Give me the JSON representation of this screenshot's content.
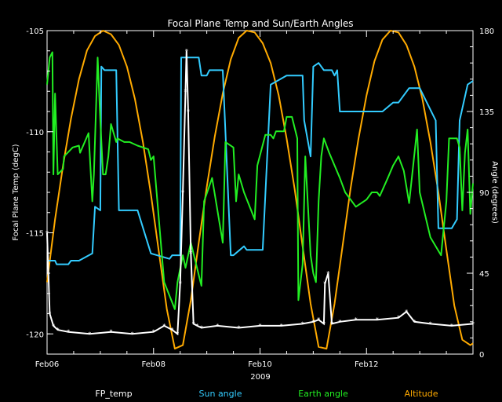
{
  "chart_data": {
    "type": "line",
    "title": "Focal Plane Temp and Sun/Earth Angles",
    "xlabel": "2009",
    "ylabel_left": "Focal Plane Temp (degC)",
    "ylabel_right": "Angle (degrees)",
    "x_ticks": [
      "Feb06",
      "Feb08",
      "Feb10",
      "Feb12"
    ],
    "x_range": [
      "Feb06",
      "Feb14"
    ],
    "ylim_left": [
      -121,
      -105
    ],
    "yticks_left": [
      "-105",
      "-110",
      "-115",
      "-120"
    ],
    "ylim_right": [
      0,
      180
    ],
    "yticks_right": [
      "180",
      "135",
      "90",
      "45",
      "0"
    ],
    "legend": [
      "FP_temp",
      "Sun angle",
      "Earth angle",
      "Altitude"
    ],
    "colors": {
      "FP_temp": "#ffffff",
      "Sun angle": "#33ccff",
      "Earth angle": "#22ee22",
      "Altitude": "#ffaa00",
      "axes": "#ffffff",
      "background": "#000000"
    },
    "series": [
      {
        "name": "FP_temp",
        "axis": "left",
        "style": "markers",
        "x": [
          6.0,
          6.05,
          6.12,
          6.2,
          6.4,
          6.8,
          7.2,
          7.6,
          8.0,
          8.2,
          8.35,
          8.45,
          8.5,
          8.55,
          8.6,
          8.62,
          8.65,
          8.7,
          8.75,
          8.82,
          8.9,
          9.2,
          9.6,
          10.0,
          10.4,
          10.8,
          11.0,
          11.1,
          11.2,
          11.22,
          11.28,
          11.35,
          11.5,
          11.8,
          12.2,
          12.6,
          12.75,
          12.9,
          13.2,
          13.6,
          14.0
        ],
        "y": [
          -115.0,
          -119.0,
          -119.6,
          -119.8,
          -119.9,
          -120.0,
          -119.9,
          -120.0,
          -119.9,
          -119.6,
          -119.8,
          -120.0,
          -117.5,
          -113.0,
          -108.0,
          -106.0,
          -109.0,
          -116.0,
          -119.5,
          -119.6,
          -119.7,
          -119.6,
          -119.7,
          -119.6,
          -119.6,
          -119.5,
          -119.4,
          -119.3,
          -119.5,
          -117.5,
          -117.0,
          -119.5,
          -119.4,
          -119.3,
          -119.3,
          -119.2,
          -118.9,
          -119.4,
          -119.5,
          -119.6,
          -119.5
        ]
      },
      {
        "name": "Sun angle",
        "axis": "right",
        "x": [
          6.0,
          6.15,
          6.18,
          6.4,
          6.45,
          6.6,
          6.85,
          6.9,
          7.0,
          7.02,
          7.08,
          7.3,
          7.35,
          7.7,
          7.95,
          8.3,
          8.35,
          8.5,
          8.52,
          8.85,
          8.9,
          9.0,
          9.05,
          9.3,
          9.45,
          9.5,
          9.7,
          9.75,
          9.9,
          10.05,
          10.2,
          10.5,
          10.8,
          10.83,
          10.95,
          11.0,
          11.1,
          11.2,
          11.35,
          11.4,
          11.45,
          11.5,
          11.8,
          12.0,
          12.3,
          12.5,
          12.6,
          12.8,
          13.0,
          13.3,
          13.35,
          13.6,
          13.7,
          13.75,
          13.9,
          14.0
        ],
        "y": [
          52,
          52,
          50,
          50,
          52,
          52,
          56,
          82,
          80,
          160,
          158,
          158,
          80,
          80,
          56,
          53,
          55,
          55,
          165,
          165,
          155,
          155,
          158,
          158,
          55,
          55,
          60,
          58,
          58,
          58,
          150,
          155,
          155,
          130,
          110,
          160,
          162,
          158,
          158,
          155,
          158,
          135,
          135,
          135,
          135,
          140,
          140,
          148,
          148,
          130,
          70,
          70,
          75,
          130,
          150,
          152
        ]
      },
      {
        "name": "Earth angle",
        "axis": "right",
        "x": [
          6.0,
          6.05,
          6.1,
          6.12,
          6.15,
          6.2,
          6.3,
          6.32,
          6.45,
          6.48,
          6.6,
          6.62,
          6.78,
          6.85,
          6.88,
          6.95,
          7.0,
          7.05,
          7.1,
          7.15,
          7.2,
          7.3,
          7.32,
          7.45,
          7.55,
          7.7,
          7.9,
          7.95,
          8.0,
          8.2,
          8.4,
          8.45,
          8.55,
          8.6,
          8.7,
          8.9,
          8.95,
          9.1,
          9.3,
          9.35,
          9.5,
          9.55,
          9.6,
          9.7,
          9.9,
          9.95,
          10.1,
          10.2,
          10.25,
          10.3,
          10.45,
          10.5,
          10.6,
          10.7,
          10.72,
          10.8,
          10.85,
          10.95,
          11.0,
          11.05,
          11.1,
          11.15,
          11.2,
          11.3,
          11.5,
          11.6,
          11.8,
          12.0,
          12.1,
          12.2,
          12.25,
          12.4,
          12.5,
          12.6,
          12.7,
          12.8,
          12.95,
          13.0,
          13.2,
          13.4,
          13.5,
          13.55,
          13.7,
          13.75,
          13.8,
          13.85,
          13.9,
          13.95,
          14.0
        ],
        "y": [
          150,
          165,
          168,
          100,
          145,
          100,
          103,
          110,
          114,
          115,
          116,
          112,
          123,
          85,
          100,
          165,
          130,
          100,
          100,
          110,
          128,
          118,
          120,
          118,
          118,
          116,
          114,
          108,
          110,
          40,
          25,
          40,
          55,
          48,
          62,
          38,
          85,
          98,
          62,
          118,
          115,
          85,
          100,
          90,
          75,
          105,
          122,
          122,
          120,
          124,
          124,
          132,
          132,
          120,
          30,
          50,
          110,
          55,
          45,
          40,
          85,
          110,
          120,
          112,
          98,
          90,
          82,
          86,
          90,
          90,
          88,
          98,
          105,
          110,
          102,
          84,
          125,
          90,
          65,
          55,
          85,
          120,
          120,
          115,
          80,
          112,
          125,
          78,
          95
        ]
      },
      {
        "name": "Altitude",
        "axis": "right",
        "x": [
          6.0,
          6.15,
          6.3,
          6.45,
          6.6,
          6.75,
          6.9,
          7.05,
          7.2,
          7.35,
          7.5,
          7.65,
          7.8,
          7.95,
          8.1,
          8.25,
          8.4,
          8.55,
          8.7,
          8.85,
          9.0,
          9.15,
          9.3,
          9.45,
          9.6,
          9.75,
          9.9,
          10.05,
          10.2,
          10.35,
          10.5,
          10.65,
          10.8,
          10.95,
          11.1,
          11.25,
          11.4,
          11.55,
          11.7,
          11.85,
          12.0,
          12.15,
          12.3,
          12.45,
          12.6,
          12.75,
          12.9,
          13.05,
          13.2,
          13.35,
          13.5,
          13.65,
          13.8,
          13.95,
          14.0
        ],
        "y": [
          40,
          75,
          105,
          131,
          153,
          169,
          177,
          180,
          178,
          172,
          160,
          142,
          118,
          89,
          57,
          25,
          3,
          5,
          30,
          62,
          93,
          121,
          145,
          164,
          176,
          180,
          179,
          173,
          162,
          144,
          120,
          92,
          60,
          28,
          4,
          3,
          28,
          60,
          92,
          120,
          144,
          163,
          175,
          180,
          179,
          172,
          160,
          142,
          118,
          90,
          58,
          27,
          8,
          5,
          6
        ]
      }
    ]
  }
}
